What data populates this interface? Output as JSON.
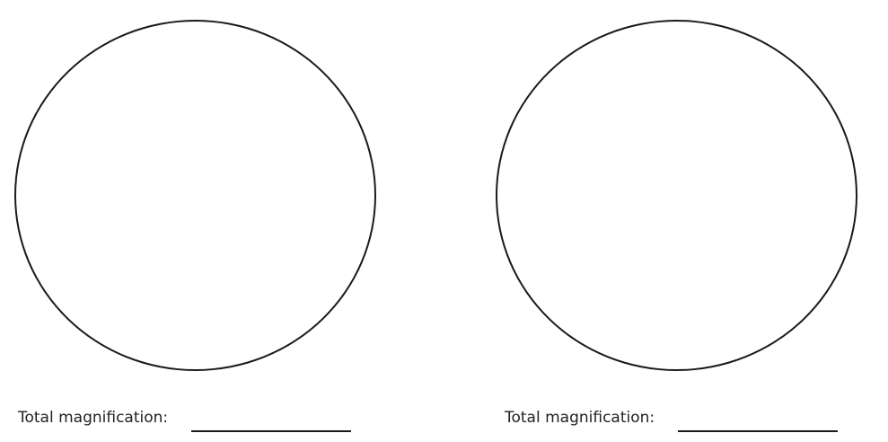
{
  "panels": [
    {
      "magnification_label": "Total magnification:",
      "magnification_value": ""
    },
    {
      "magnification_label": "Total magnification:",
      "magnification_value": ""
    }
  ],
  "colors": {
    "stroke": "#1a1a1a",
    "text": "#222222",
    "background": "#ffffff"
  }
}
